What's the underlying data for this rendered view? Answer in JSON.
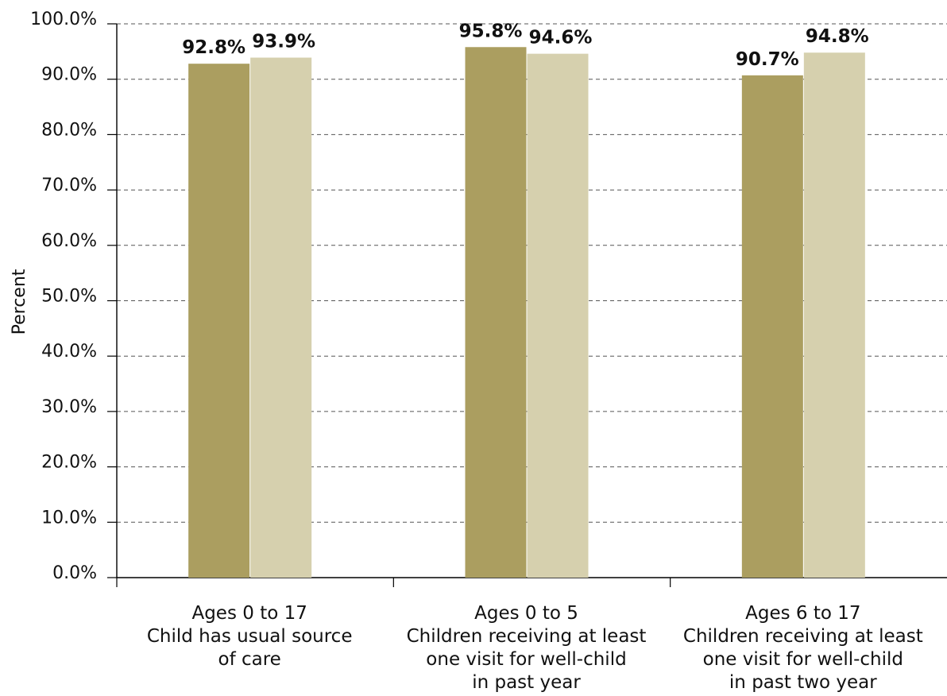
{
  "chart_data": {
    "type": "bar",
    "ylabel": "Percent",
    "ylim": [
      0,
      100
    ],
    "yticks": [
      "0.0%",
      "10.0%",
      "20.0%",
      "30.0%",
      "40.0%",
      "50.0%",
      "60.0%",
      "70.0%",
      "80.0%",
      "90.0%",
      "100.0%"
    ],
    "grid": true,
    "categories": [
      [
        "Ages 0 to 17",
        "Child has usual source",
        "of care"
      ],
      [
        "Ages 0 to 5",
        "Children receiving at least",
        "one visit for well-child",
        "in past year"
      ],
      [
        "Ages 6 to 17",
        "Children receiving at least",
        "one visit for well-child",
        "in past two year"
      ]
    ],
    "series": [
      {
        "color": "#ab9e60",
        "values": [
          92.8,
          95.8,
          90.7
        ],
        "labels": [
          "92.8%",
          "95.8%",
          "90.7%"
        ]
      },
      {
        "color": "#d6d0ae",
        "values": [
          93.9,
          94.6,
          94.8
        ],
        "labels": [
          "93.9%",
          "94.6%",
          "94.8%"
        ]
      }
    ]
  }
}
